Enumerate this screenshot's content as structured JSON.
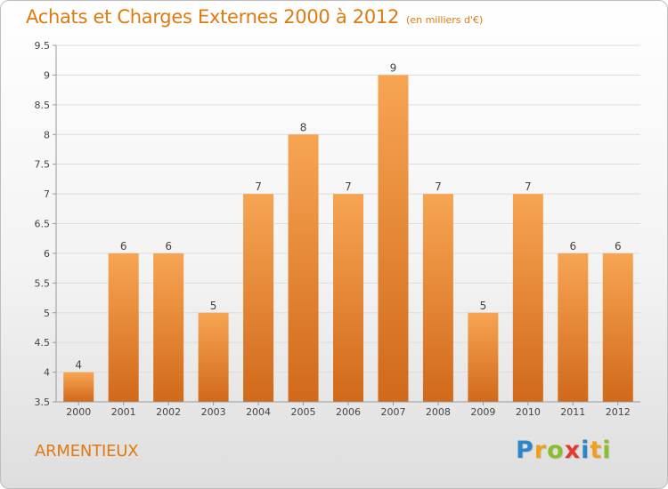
{
  "title": "Achats et Charges Externes 2000 à 2012",
  "unit": "(en milliers d'€)",
  "commune": "ARMENTIEUX",
  "logo": {
    "letters": [
      {
        "char": "P",
        "color": "#2e86c8"
      },
      {
        "char": "r",
        "color": "#f0a020"
      },
      {
        "char": "o",
        "color": "#8cbd2c"
      },
      {
        "char": "x",
        "color": "#e23b2e"
      },
      {
        "char": "i",
        "color": "#2e86c8"
      },
      {
        "char": "t",
        "color": "#f0a020"
      },
      {
        "char": "i",
        "color": "#8cbd2c"
      }
    ]
  },
  "colors": {
    "bar_light": "#f7a553",
    "bar_dark": "#d1691a",
    "title": "#e07a10",
    "axis": "#999999",
    "grid": "#dddddd",
    "text": "#444444"
  },
  "chart_data": {
    "type": "bar",
    "categories": [
      "2000",
      "2001",
      "2002",
      "2003",
      "2004",
      "2005",
      "2006",
      "2007",
      "2008",
      "2009",
      "2010",
      "2011",
      "2012"
    ],
    "values": [
      4,
      6,
      6,
      5,
      7,
      8,
      7,
      9,
      7,
      5,
      7,
      6,
      6
    ],
    "data_labels": [
      "4",
      "6",
      "6",
      "5",
      "7",
      "8",
      "7",
      "9",
      "7",
      "5",
      "7",
      "6",
      "6"
    ],
    "ylim": [
      3.5,
      9.5
    ],
    "yticks": [
      3.5,
      4,
      4.5,
      5,
      5.5,
      6,
      6.5,
      7,
      7.5,
      8,
      8.5,
      9,
      9.5
    ],
    "ytick_labels": [
      "3.5",
      "4",
      "4.5",
      "5",
      "5.5",
      "6",
      "6.5",
      "7",
      "7.5",
      "8",
      "8.5",
      "9",
      "9.5"
    ],
    "grid": true
  }
}
